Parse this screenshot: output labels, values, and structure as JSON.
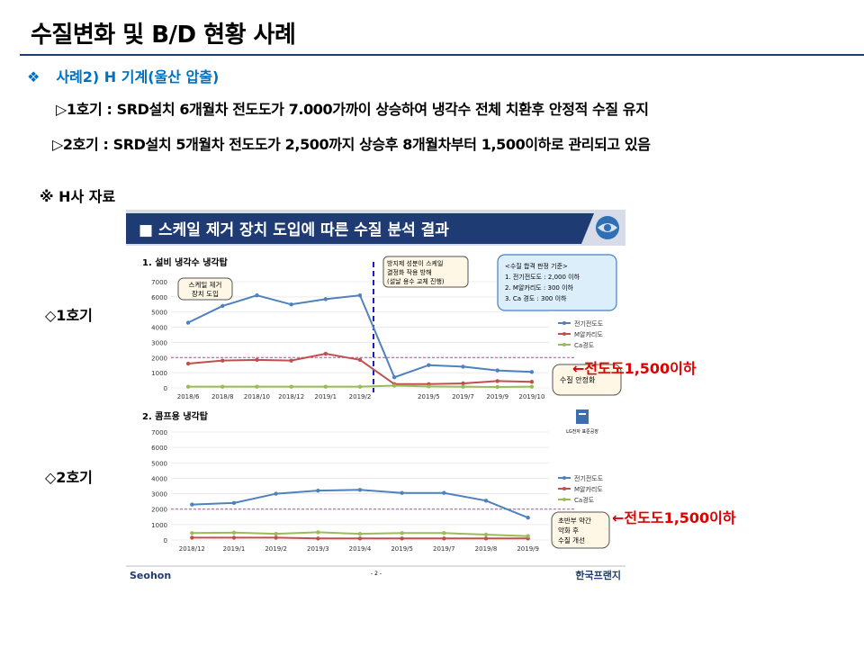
{
  "header": {
    "title": "수질변화 및 B/D 현황 사례",
    "case_bullet": "❖",
    "case_label": "사례2) H 기계(울산 압출)"
  },
  "descriptions": [
    "▷1호기 : SRD설치 6개월차 전도도가 7.000가까이 상승하여 냉각수 전체 치환후 안정적 수질 유지",
    "▷2호기 : SRD설치 5개월차 전도도가 2,500까지 상승후 8개월차부터 1,500이하로 관리되고 있음"
  ],
  "source_note": "※ H사 자료",
  "unit_labels": [
    "◇1호기",
    "◇2호기"
  ],
  "threshold_notes": [
    "←전도도1,500이하",
    "←전도도1,500이하"
  ],
  "report": {
    "banner_title": "■ 스케일 제거 장치 도입에 따른 수질 분석 결과",
    "footer_left": "Seohon",
    "footer_page": "- 2 -",
    "footer_right": "한국프랜지",
    "small_logo_caption": "LG전자 표준공장",
    "callouts": {
      "c1_install": [
        "스케일 제거",
        "장치 도입"
      ],
      "c1_stop": [
        "방지제 성분이 스케일",
        "결정화 작용 방해",
        "(설날 용수 교체 진행)"
      ],
      "c1_criteria": [
        "<수질 합격 판정 기준>",
        "1. 전기전도도 : 2,000 이하",
        "2. M알카리도 : 300 이하",
        "3. Ca 경도 : 300 이하"
      ],
      "c1_stable": [
        "수질 안정화"
      ],
      "c2_improve": [
        "초반부 약간",
        "악화 후",
        "수질 개선"
      ]
    },
    "colors": {
      "conductivity": "#4f81bd",
      "m_alkalinity": "#c0504d",
      "ca_hardness": "#9bbb59",
      "threshold": "#d63a9a",
      "banner": "#1f3b73"
    }
  },
  "chart_data": [
    {
      "type": "line",
      "title": "1. 설비 냉각수 냉각탑",
      "categories": [
        "2018/6",
        "2018/8",
        "2018/10",
        "2018/12",
        "2019/1",
        "2019/2",
        "",
        "2019/5",
        "2019/7",
        "2019/9",
        "2019/10"
      ],
      "ylim": [
        0,
        7000
      ],
      "yticks": [
        0,
        1000,
        2000,
        3000,
        4000,
        5000,
        6000,
        7000
      ],
      "threshold": 2000,
      "series": [
        {
          "name": "전기전도도",
          "values": [
            4300,
            5400,
            6100,
            5500,
            5850,
            6100,
            700,
            1500,
            1400,
            1150,
            1050
          ]
        },
        {
          "name": "M알카리도",
          "values": [
            1600,
            1800,
            1850,
            1800,
            2250,
            1850,
            250,
            250,
            300,
            450,
            400
          ]
        },
        {
          "name": "Ca경도",
          "values": [
            80,
            80,
            80,
            80,
            80,
            80,
            150,
            100,
            80,
            60,
            80
          ]
        }
      ],
      "legend": "right"
    },
    {
      "type": "line",
      "title": "2. 콤프용 냉각탑",
      "categories": [
        "2018/12",
        "2019/1",
        "2019/2",
        "2019/3",
        "2019/4",
        "2019/5",
        "2019/7",
        "2019/8",
        "2019/9"
      ],
      "ylim": [
        0,
        7000
      ],
      "yticks": [
        0,
        1000,
        2000,
        3000,
        4000,
        5000,
        6000,
        7000
      ],
      "threshold": 2000,
      "series": [
        {
          "name": "전기전도도",
          "values": [
            2300,
            2400,
            3000,
            3200,
            3250,
            3050,
            3050,
            2550,
            1450
          ]
        },
        {
          "name": "M알카리도",
          "values": [
            150,
            150,
            150,
            100,
            100,
            100,
            100,
            100,
            100
          ]
        },
        {
          "name": "Ca경도",
          "values": [
            450,
            480,
            400,
            500,
            400,
            450,
            450,
            350,
            250
          ]
        }
      ],
      "legend": "right"
    }
  ]
}
